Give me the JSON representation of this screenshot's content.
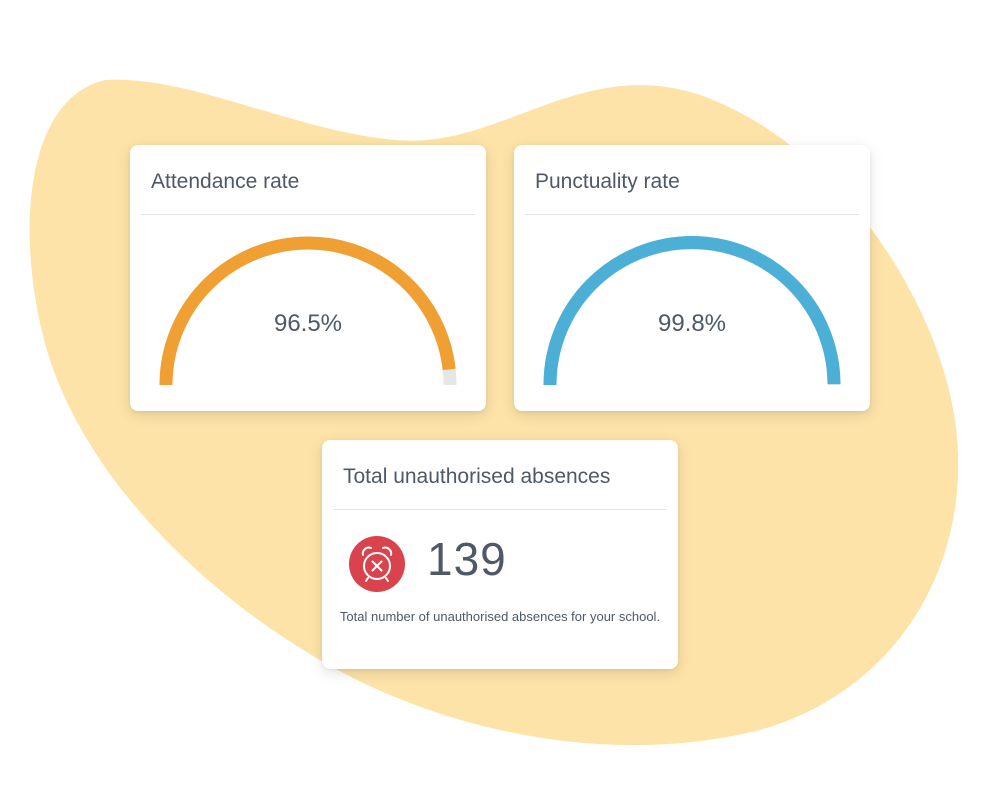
{
  "colors": {
    "background_blob": "#fde3a7",
    "attendance_accent": "#f0a033",
    "punctuality_accent": "#4bafd6",
    "track": "#e6e6e6",
    "absence_icon_bg": "#d9434e"
  },
  "attendance": {
    "title": "Attendance rate",
    "value_label": "96.5%",
    "value": 96.5
  },
  "punctuality": {
    "title": "Punctuality rate",
    "value_label": "99.8%",
    "value": 99.8
  },
  "absences": {
    "title": "Total unauthorised absences",
    "count": "139",
    "description": "Total number of unauthorised absences for your school.",
    "icon": "alarm-clock-x-icon"
  }
}
